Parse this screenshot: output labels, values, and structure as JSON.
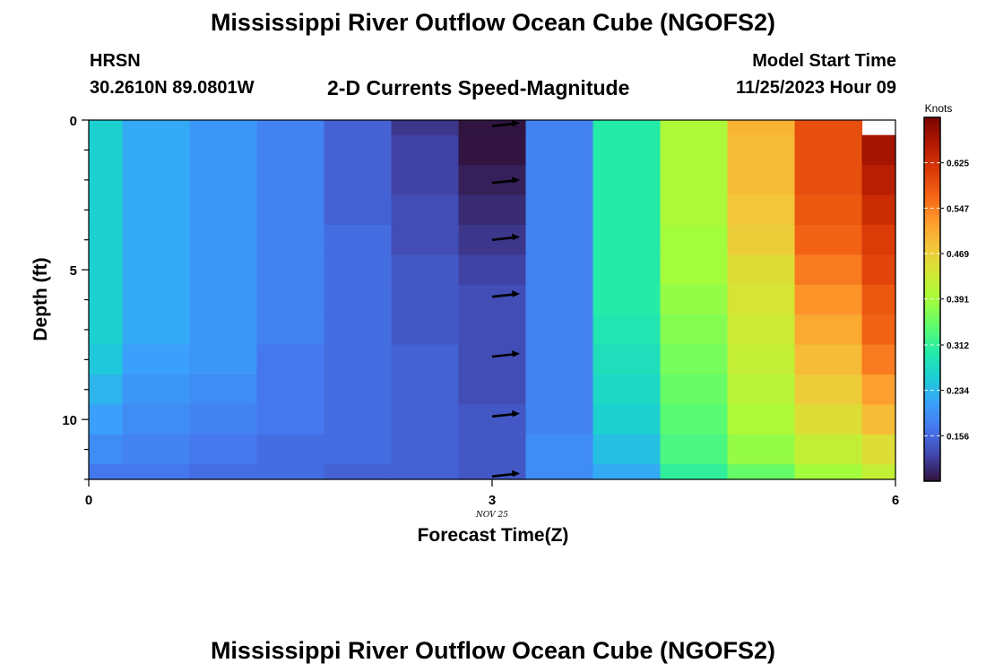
{
  "header": {
    "title_top": "Mississippi River Outflow Ocean Cube (NGOFS2)",
    "title_bottom": "Mississippi River Outflow Ocean Cube (NGOFS2)",
    "station": "HRSN",
    "location": "30.2610N  89.0801W",
    "subtitle": "2-D Currents Speed-Magnitude",
    "model_label": "Model Start Time",
    "model_time": "11/25/2023 Hour 09"
  },
  "chart_data": {
    "type": "heatmap",
    "xlabel": "Forecast Time(Z)",
    "ylabel": "Depth (ft)",
    "x_ticks": [
      "0",
      "3",
      "6"
    ],
    "x_tick_values": [
      0,
      3,
      6
    ],
    "x_date_label": "NOV 25",
    "x_date_at": 3,
    "y_ticks": [
      "0",
      "5",
      "10"
    ],
    "y_tick_values": [
      0,
      5,
      10
    ],
    "xlim": [
      0,
      6
    ],
    "ylim": [
      0,
      12
    ],
    "y_inverted": true,
    "colorbar": {
      "units": "Knots",
      "ticks": [
        "0.625",
        "0.547",
        "0.469",
        "0.391",
        "0.312",
        "0.234",
        "0.156"
      ],
      "tick_values": [
        0.625,
        0.547,
        0.469,
        0.391,
        0.312,
        0.234,
        0.156
      ],
      "range": [
        0.078,
        0.703
      ],
      "colors": [
        "#30123b",
        "#4145ab",
        "#4675ed",
        "#39a2fc",
        "#1bcfd4",
        "#24eca6",
        "#61fc6c",
        "#a4fc3b",
        "#d1e834",
        "#f3c63a",
        "#fe9b2d",
        "#f36315",
        "#d93806",
        "#b11901",
        "#7a0402"
      ]
    },
    "columns": [
      0,
      0.25,
      0.75,
      1.25,
      1.75,
      2.25,
      2.75,
      3.25,
      3.75,
      4.25,
      4.75,
      5.25,
      5.75,
      6
    ],
    "depths": [
      0,
      0.5,
      1.5,
      2.5,
      3.5,
      4.5,
      5.5,
      6.5,
      7.5,
      8.5,
      9.5,
      10.5,
      11.5,
      12
    ],
    "values": [
      [
        0.26,
        0.22,
        0.2,
        0.18,
        0.15,
        0.11,
        0.08,
        0.18,
        0.3,
        0.4,
        0.5,
        0.59,
        null
      ],
      [
        0.26,
        0.22,
        0.2,
        0.18,
        0.15,
        0.12,
        0.08,
        0.18,
        0.3,
        0.4,
        0.49,
        0.59,
        0.67
      ],
      [
        0.26,
        0.22,
        0.2,
        0.18,
        0.15,
        0.12,
        0.09,
        0.18,
        0.3,
        0.4,
        0.49,
        0.59,
        0.65
      ],
      [
        0.26,
        0.22,
        0.2,
        0.18,
        0.15,
        0.13,
        0.1,
        0.18,
        0.3,
        0.4,
        0.48,
        0.58,
        0.63
      ],
      [
        0.26,
        0.22,
        0.2,
        0.18,
        0.16,
        0.13,
        0.11,
        0.18,
        0.3,
        0.39,
        0.47,
        0.57,
        0.61
      ],
      [
        0.26,
        0.22,
        0.2,
        0.18,
        0.16,
        0.14,
        0.12,
        0.18,
        0.3,
        0.39,
        0.45,
        0.55,
        0.6
      ],
      [
        0.26,
        0.22,
        0.2,
        0.18,
        0.16,
        0.14,
        0.13,
        0.18,
        0.3,
        0.38,
        0.44,
        0.53,
        0.58
      ],
      [
        0.26,
        0.22,
        0.2,
        0.18,
        0.16,
        0.14,
        0.13,
        0.18,
        0.29,
        0.37,
        0.43,
        0.51,
        0.57
      ],
      [
        0.25,
        0.21,
        0.2,
        0.17,
        0.16,
        0.15,
        0.13,
        0.18,
        0.28,
        0.36,
        0.42,
        0.49,
        0.55
      ],
      [
        0.23,
        0.2,
        0.19,
        0.17,
        0.16,
        0.15,
        0.13,
        0.18,
        0.27,
        0.35,
        0.41,
        0.47,
        0.52
      ],
      [
        0.21,
        0.19,
        0.18,
        0.17,
        0.16,
        0.15,
        0.14,
        0.18,
        0.26,
        0.34,
        0.4,
        0.45,
        0.49
      ],
      [
        0.19,
        0.18,
        0.17,
        0.16,
        0.16,
        0.15,
        0.14,
        0.19,
        0.24,
        0.33,
        0.38,
        0.42,
        0.45
      ],
      [
        0.17,
        0.17,
        0.16,
        0.16,
        0.15,
        0.15,
        0.14,
        0.19,
        0.22,
        0.31,
        0.35,
        0.39,
        0.42
      ]
    ],
    "arrows": {
      "x": 3,
      "depths": [
        0.2,
        2.1,
        4.0,
        5.9,
        7.9,
        9.9,
        11.9
      ]
    }
  }
}
